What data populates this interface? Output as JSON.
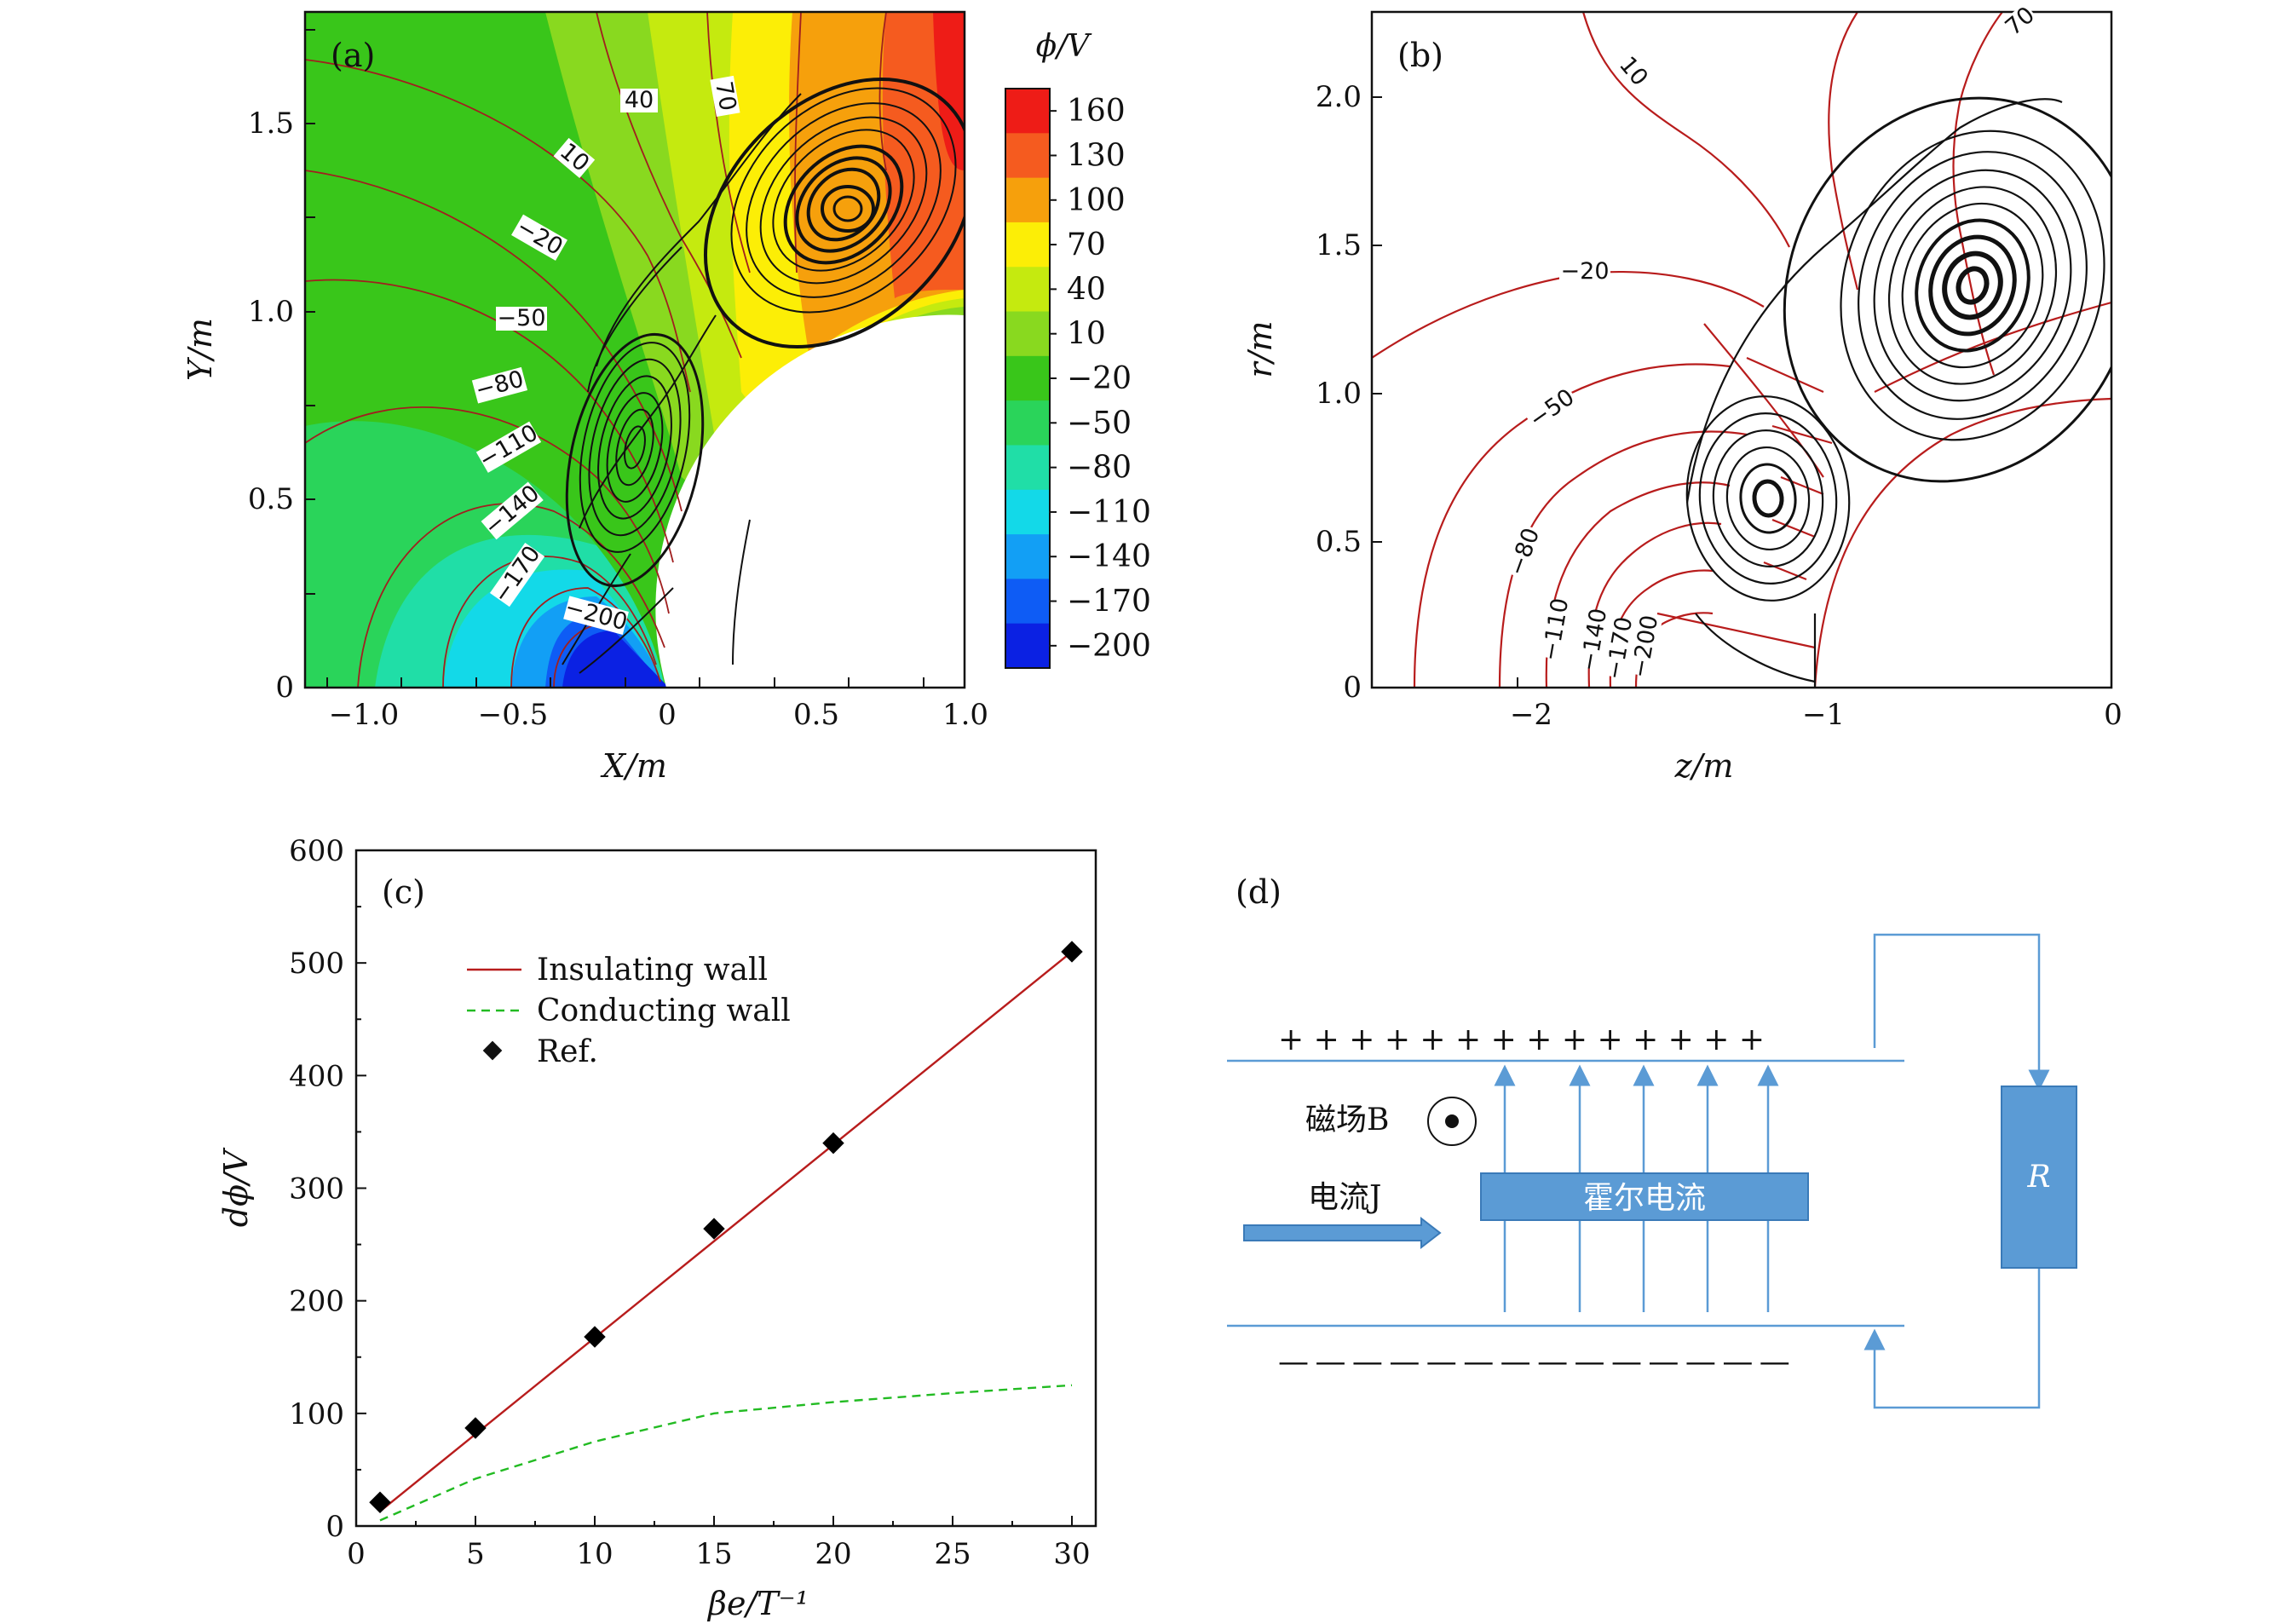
{
  "panel_a": {
    "label": "(a)",
    "xlabel": "X/m",
    "ylabel": "Y/m",
    "xticks": [
      "−1.0",
      "−0.5",
      "0",
      "0.5",
      "1.0"
    ],
    "yticks": [
      "0",
      "0.5",
      "1.0",
      "1.5"
    ],
    "contour_labels": [
      "40",
      "70",
      "10",
      "−20",
      "−50",
      "−80",
      "−110",
      "−140",
      "−170",
      "−200"
    ],
    "colorbar_title": "ϕ/V",
    "colorbar": [
      {
        "label": "160",
        "color": "#ee1c17"
      },
      {
        "label": "130",
        "color": "#f55b1f"
      },
      {
        "label": "100",
        "color": "#f6a00c"
      },
      {
        "label": "70",
        "color": "#fcee06"
      },
      {
        "label": "40",
        "color": "#c5ea0f"
      },
      {
        "label": "10",
        "color": "#89d91f"
      },
      {
        "label": "−20",
        "color": "#39c61a"
      },
      {
        "label": "−50",
        "color": "#2ad45a"
      },
      {
        "label": "−80",
        "color": "#20dea7"
      },
      {
        "label": "−110",
        "color": "#13d9e8"
      },
      {
        "label": "−140",
        "color": "#129ff5"
      },
      {
        "label": "−170",
        "color": "#0e5cf5"
      },
      {
        "label": "−200",
        "color": "#0b21e3"
      }
    ]
  },
  "panel_b": {
    "label": "(b)",
    "xlabel": "z/m",
    "ylabel": "r/m",
    "xticks": [
      "−2",
      "−1",
      "0"
    ],
    "yticks": [
      "0",
      "0.5",
      "1.0",
      "1.5",
      "2.0"
    ],
    "contour_labels": [
      "10",
      "70",
      "−20",
      "−50",
      "−80",
      "−110",
      "−140",
      "−170",
      "−200"
    ]
  },
  "panel_c": {
    "label": "(c)",
    "chart_data": {
      "type": "line",
      "xlabel": "βe/T⁻¹",
      "ylabel": "dϕ/V",
      "xlim": [
        0,
        31
      ],
      "ylim": [
        0,
        600
      ],
      "xticks": [
        "0",
        "5",
        "10",
        "15",
        "20",
        "25",
        "30"
      ],
      "yticks": [
        "0",
        "100",
        "200",
        "300",
        "400",
        "500",
        "600"
      ],
      "series": [
        {
          "name": "Insulating wall",
          "style": "solid",
          "color": "#b81c1c",
          "x": [
            1,
            30
          ],
          "y": [
            13,
            510
          ]
        },
        {
          "name": "Conducting wall",
          "style": "dashed",
          "color": "#22bb22",
          "x": [
            1,
            5,
            10,
            15,
            20,
            25,
            30
          ],
          "y": [
            5,
            42,
            75,
            100,
            110,
            118,
            125
          ]
        },
        {
          "name": "Ref.",
          "style": "marker",
          "color": "#000000",
          "x": [
            1,
            5,
            10,
            15,
            20,
            30
          ],
          "y": [
            21,
            87,
            168,
            264,
            340,
            510
          ]
        }
      ]
    }
  },
  "panel_d": {
    "label": "(d)",
    "plus_signs": "+ + + + + + + + + + + + + +",
    "minus_signs": "— — — — — — — — — — — — — —",
    "field_label": "磁场B",
    "current_label": "电流J",
    "hall_label": "霍尔电流",
    "resistor_label": "R",
    "line_color": "#5b9bd5"
  }
}
